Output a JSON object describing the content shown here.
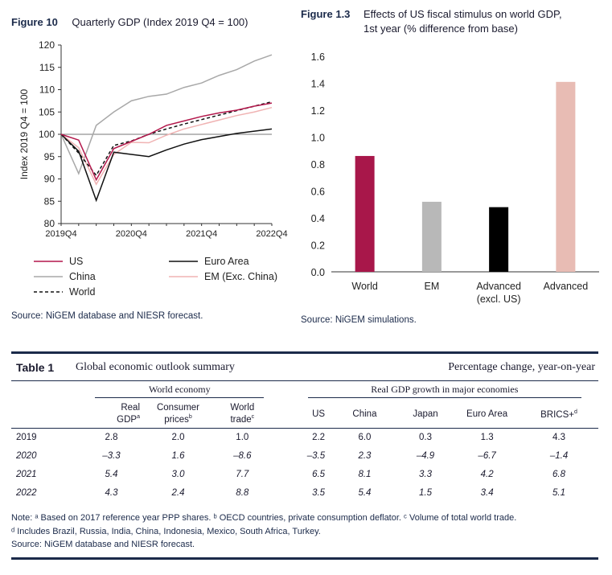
{
  "figure10": {
    "label": "Figure 10",
    "title": "Quarterly GDP (Index 2019 Q4 = 100)",
    "source": "Source: NiGEM database and NIESR forecast.",
    "chart_data": {
      "type": "line",
      "title": "Quarterly GDP (Index 2019 Q4 = 100)",
      "ylabel": "Index 2019 Q4 = 100",
      "ylim": [
        80,
        120
      ],
      "yticks": [
        80,
        85,
        90,
        95,
        100,
        105,
        110,
        115,
        120
      ],
      "xticks": [
        "2019Q4",
        "2020Q4",
        "2021Q4",
        "2022Q4"
      ],
      "x": [
        "2019Q4",
        "2020Q1",
        "2020Q2",
        "2020Q3",
        "2020Q4",
        "2021Q1",
        "2021Q2",
        "2021Q3",
        "2021Q4",
        "2022Q1",
        "2022Q2",
        "2022Q3",
        "2022Q4"
      ],
      "series": [
        {
          "name": "US",
          "color": "#b3174b",
          "dash": "",
          "values": [
            100,
            98.7,
            89.8,
            96.8,
            98.4,
            100.0,
            102.0,
            103.0,
            104.0,
            104.8,
            105.4,
            106.3,
            107.0
          ]
        },
        {
          "name": "Euro Area",
          "color": "#111111",
          "dash": "",
          "values": [
            100,
            96.2,
            85.2,
            96.0,
            95.5,
            95.0,
            96.5,
            97.8,
            98.8,
            99.5,
            100.2,
            100.7,
            101.2
          ]
        },
        {
          "name": "China",
          "color": "#a8a8a8",
          "dash": "",
          "values": [
            100,
            91.2,
            102.0,
            105.0,
            107.5,
            108.5,
            109.0,
            110.5,
            111.5,
            113.2,
            114.5,
            116.4,
            117.8
          ]
        },
        {
          "name": "EM (Exc. China)",
          "color": "#f0b3b3",
          "dash": "",
          "values": [
            100,
            97.0,
            88.8,
            95.5,
            98.2,
            98.1,
            99.8,
            101.2,
            102.2,
            103.2,
            104.2,
            105.0,
            106.0
          ]
        },
        {
          "name": "World",
          "color": "#111111",
          "dash": "4,3",
          "values": [
            100,
            95.8,
            90.8,
            97.5,
            98.5,
            100.0,
            101.2,
            102.3,
            103.3,
            104.3,
            105.3,
            106.3,
            107.3
          ]
        }
      ],
      "reference_line": 100
    }
  },
  "figure13": {
    "label": "Figure 1.3",
    "title_line1": "Effects of US fiscal stimulus on world GDP,",
    "title_line2": "1st year (% difference from base)",
    "source": "Source: NiGEM simulations.",
    "chart_data": {
      "type": "bar",
      "title": "Effects of US fiscal stimulus on world GDP, 1st year (% difference from base)",
      "categories": [
        [
          "World"
        ],
        [
          "EM"
        ],
        [
          "Advanced",
          "(excl. US)"
        ],
        [
          "Advanced"
        ]
      ],
      "values": [
        0.86,
        0.52,
        0.48,
        1.41
      ],
      "colors": [
        "#a8174a",
        "#b8b8b8",
        "#000000",
        "#e8bcb4"
      ],
      "ylim": [
        0,
        1.6
      ],
      "yticks": [
        "0.0",
        "0.2",
        "0.4",
        "0.6",
        "0.8",
        "1.0",
        "1.2",
        "1.4",
        "1.6"
      ]
    }
  },
  "table1": {
    "label": "Table 1",
    "title": "Global economic outlook summary",
    "subtitle": "Percentage change, year-on-year",
    "group_world": "World economy",
    "group_gdp": "Real GDP growth in major economies",
    "cols": {
      "real_gdp_1": "Real",
      "real_gdp_2": "GDP",
      "real_gdp_sup": "a",
      "consumer_1": "Consumer",
      "consumer_2": "prices",
      "consumer_sup": "b",
      "trade_1": "World",
      "trade_2": "trade",
      "trade_sup": "c",
      "us": "US",
      "china": "China",
      "japan": "Japan",
      "euro": "Euro Area",
      "brics": "BRICS+",
      "brics_sup": "d"
    },
    "rows": [
      {
        "year": "2019",
        "italic": false,
        "v": [
          "2.8",
          "2.0",
          "1.0",
          "2.2",
          "6.0",
          "0.3",
          "1.3",
          "4.3"
        ]
      },
      {
        "year": "2020",
        "italic": true,
        "v": [
          "–3.3",
          "1.6",
          "–8.6",
          "–3.5",
          "2.3",
          "–4.9",
          "–6.7",
          "–1.4"
        ]
      },
      {
        "year": "2021",
        "italic": true,
        "v": [
          "5.4",
          "3.0",
          "7.7",
          "6.5",
          "8.1",
          "3.3",
          "4.2",
          "6.8"
        ]
      },
      {
        "year": "2022",
        "italic": true,
        "v": [
          "4.3",
          "2.4",
          "8.8",
          "3.5",
          "5.4",
          "1.5",
          "3.4",
          "5.1"
        ]
      }
    ],
    "note_line1": "Note: ᵃ Based on 2017 reference year PPP shares. ᵇ OECD countries, private consumption deflator. ᶜ Volume of total world trade.",
    "note_line2": "ᵈ Includes Brazil, Russia, India, China, Indonesia, Mexico, South Africa, Turkey.",
    "note_line3": "Source: NiGEM database and NIESR forecast."
  }
}
